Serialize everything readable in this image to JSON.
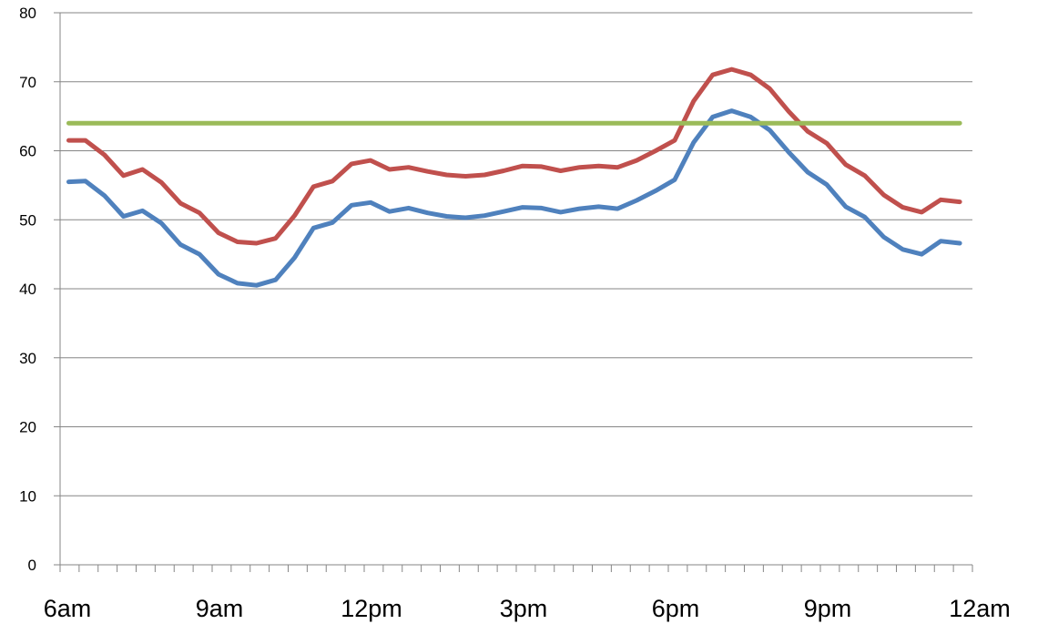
{
  "chart_data": {
    "type": "line",
    "title": "",
    "xlabel": "",
    "ylabel": "",
    "ylim": [
      0,
      80
    ],
    "yticks": [
      0,
      10,
      20,
      30,
      40,
      50,
      60,
      70,
      80
    ],
    "xlim": [
      0,
      18
    ],
    "xtick_labels": [
      "6am",
      "9am",
      "12pm",
      "3pm",
      "6pm",
      "9pm",
      "12am"
    ],
    "grid": "horizontal",
    "series": [
      {
        "color": "#4f81bd",
        "x": [
          0.17,
          0.5,
          0.875,
          1.25,
          1.625,
          2.0,
          2.375,
          2.75,
          3.125,
          3.5,
          3.875,
          4.25,
          4.625,
          5.0,
          5.375,
          5.75,
          6.125,
          6.5,
          6.875,
          7.25,
          7.625,
          8.0,
          8.375,
          8.75,
          9.125,
          9.5,
          9.875,
          10.25,
          10.625,
          11.0,
          11.375,
          11.75,
          12.125,
          12.5,
          12.875,
          13.25,
          13.625,
          14.0,
          14.375,
          14.75,
          15.125,
          15.5,
          15.875,
          16.25,
          16.625,
          17.0,
          17.375,
          17.75
        ],
        "values": [
          55.5,
          55.6,
          53.5,
          50.5,
          51.3,
          49.5,
          46.4,
          45.0,
          42.1,
          40.8,
          40.5,
          41.3,
          44.5,
          48.8,
          49.6,
          52.1,
          52.5,
          51.2,
          51.7,
          51.0,
          50.5,
          50.3,
          50.6,
          51.2,
          51.8,
          51.7,
          51.1,
          51.6,
          51.9,
          51.6,
          52.8,
          54.2,
          55.8,
          61.2,
          64.9,
          65.8,
          64.9,
          63.0,
          59.8,
          56.9,
          55.1,
          51.9,
          50.4,
          47.5,
          45.7,
          45.0,
          46.9,
          46.6
        ]
      },
      {
        "color": "#c0504d",
        "x": [
          0.17,
          0.5,
          0.875,
          1.25,
          1.625,
          2.0,
          2.375,
          2.75,
          3.125,
          3.5,
          3.875,
          4.25,
          4.625,
          5.0,
          5.375,
          5.75,
          6.125,
          6.5,
          6.875,
          7.25,
          7.625,
          8.0,
          8.375,
          8.75,
          9.125,
          9.5,
          9.875,
          10.25,
          10.625,
          11.0,
          11.375,
          11.75,
          12.125,
          12.5,
          12.875,
          13.25,
          13.625,
          14.0,
          14.375,
          14.75,
          15.125,
          15.5,
          15.875,
          16.25,
          16.625,
          17.0,
          17.375,
          17.75
        ],
        "values": [
          61.5,
          61.5,
          59.4,
          56.4,
          57.3,
          55.4,
          52.4,
          51.0,
          48.1,
          46.8,
          46.6,
          47.3,
          50.6,
          54.8,
          55.6,
          58.1,
          58.6,
          57.3,
          57.6,
          57.0,
          56.5,
          56.3,
          56.5,
          57.1,
          57.8,
          57.7,
          57.1,
          57.6,
          57.8,
          57.6,
          58.6,
          60.0,
          61.5,
          67.2,
          71.0,
          71.8,
          71.0,
          69.0,
          65.7,
          62.8,
          61.1,
          58.0,
          56.4,
          53.6,
          51.8,
          51.1,
          52.9,
          52.6
        ]
      },
      {
        "color": "#9bbb59",
        "x": [
          0.17,
          17.75
        ],
        "values": [
          64.0,
          64.0
        ]
      }
    ]
  }
}
